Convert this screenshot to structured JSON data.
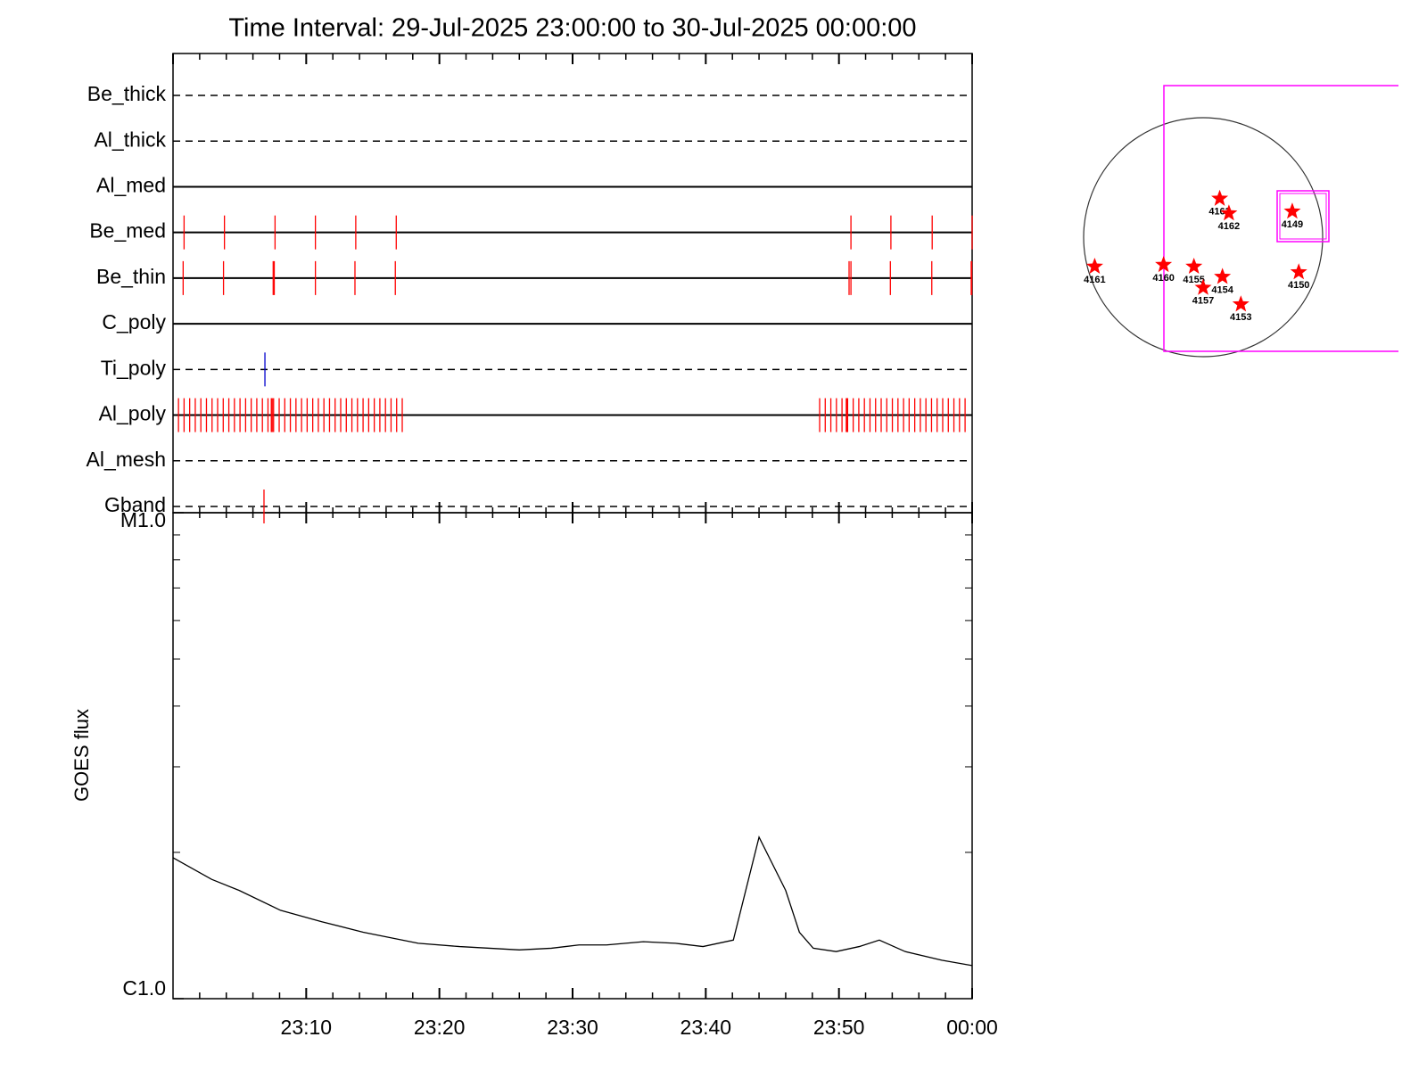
{
  "chart_data": [
    {
      "type": "events",
      "title": "Time Interval: 29-Jul-2025 23:00:00 to 30-Jul-2025 00:00:00",
      "xlim": [
        0,
        60
      ],
      "xticks": [
        0,
        10,
        20,
        30,
        40,
        50,
        60
      ],
      "xminorticks": [
        2,
        4,
        6,
        8,
        12,
        14,
        16,
        18,
        22,
        24,
        26,
        28,
        32,
        34,
        36,
        38,
        42,
        44,
        46,
        48,
        52,
        54,
        56,
        58
      ],
      "filters": [
        {
          "name": "Be_thick",
          "line_style": "dashed",
          "event_color": "#ff0000",
          "events": []
        },
        {
          "name": "Al_thick",
          "line_style": "dashed",
          "event_color": "#ff0000",
          "events": []
        },
        {
          "name": "Al_med",
          "line_style": "solid",
          "event_color": "#ff0000",
          "events": []
        },
        {
          "name": "Be_med",
          "line_style": "solid",
          "event_color": "#ff0000",
          "events": [
            0.83,
            3.86,
            7.66,
            10.69,
            13.72,
            16.76,
            50.9,
            53.9,
            57.0,
            60.0
          ]
        },
        {
          "name": "Be_thin",
          "line_style": "solid",
          "event_color": "#ff0000",
          "events": [
            0.76,
            3.79,
            7.52,
            7.6,
            10.69,
            13.66,
            16.69,
            50.76,
            50.9,
            53.86,
            56.97,
            59.93,
            59.97
          ]
        },
        {
          "name": "C_poly",
          "line_style": "solid",
          "event_color": "#ff0000",
          "events": []
        },
        {
          "name": "Ti_poly",
          "line_style": "dashed",
          "event_color": "#0000cc",
          "events": [
            6.9
          ]
        },
        {
          "name": "Al_poly",
          "line_style": "solid",
          "event_color": "#ff0000",
          "events": [
            0.41,
            0.83,
            1.25,
            1.67,
            2.09,
            2.51,
            2.93,
            3.35,
            3.77,
            4.19,
            4.61,
            5.03,
            5.45,
            5.87,
            6.29,
            6.71,
            7.13,
            7.38,
            7.45,
            7.55,
            7.97,
            8.39,
            8.81,
            9.23,
            9.65,
            10.07,
            10.49,
            10.91,
            11.33,
            11.75,
            12.17,
            12.59,
            13.01,
            13.43,
            13.85,
            14.27,
            14.69,
            15.11,
            15.53,
            15.95,
            16.37,
            16.79,
            17.21,
            48.55,
            48.97,
            49.39,
            49.81,
            50.23,
            50.55,
            50.6,
            50.65,
            51.07,
            51.49,
            51.91,
            52.33,
            52.75,
            53.17,
            53.59,
            54.01,
            54.43,
            54.85,
            55.27,
            55.69,
            56.11,
            56.53,
            56.95,
            57.37,
            57.79,
            58.21,
            58.63,
            59.05,
            59.47
          ]
        },
        {
          "name": "Al_mesh",
          "line_style": "dashed",
          "event_color": "#ff0000",
          "events": []
        },
        {
          "name": "Gband",
          "line_style": "dashed",
          "event_color": "#ff0000",
          "events": [
            6.83
          ]
        }
      ]
    },
    {
      "type": "line",
      "y_label": "GOES flux",
      "ylog": true,
      "color": "#000000",
      "xlim": [
        0,
        60
      ],
      "xticks": [
        {
          "value": 10,
          "label": "23:10"
        },
        {
          "value": 20,
          "label": "23:20"
        },
        {
          "value": 30,
          "label": "23:30"
        },
        {
          "value": 40,
          "label": "23:40"
        },
        {
          "value": 50,
          "label": "23:50"
        },
        {
          "value": 60,
          "label": "00:00"
        }
      ],
      "ylim": [
        1e-06,
        1e-05
      ],
      "yticks": [
        {
          "value": 1e-06,
          "label": "C1.0"
        },
        {
          "value": 1e-05,
          "label": "M1.0"
        }
      ],
      "yminorticks": [
        2e-06,
        3e-06,
        4e-06,
        5e-06,
        6e-06,
        7e-06,
        8e-06,
        9e-06
      ],
      "x": [
        0,
        2.9,
        4.97,
        8.07,
        11.17,
        14.28,
        18.41,
        21.52,
        26.0,
        28.41,
        30.48,
        32.55,
        35.31,
        37.72,
        39.79,
        42.07,
        44.0,
        46.0,
        47.03,
        48.07,
        49.79,
        51.52,
        53.03,
        54.97,
        57.72,
        60.0
      ],
      "values": [
        1.95e-06,
        1.76e-06,
        1.67e-06,
        1.52e-06,
        1.44e-06,
        1.37e-06,
        1.3e-06,
        1.28e-06,
        1.26e-06,
        1.27e-06,
        1.29e-06,
        1.29e-06,
        1.31e-06,
        1.3e-06,
        1.28e-06,
        1.32e-06,
        2.15e-06,
        1.67e-06,
        1.37e-06,
        1.27e-06,
        1.25e-06,
        1.28e-06,
        1.32e-06,
        1.25e-06,
        1.2e-06,
        1.17e-06
      ]
    },
    {
      "type": "map",
      "color": "#ff0000",
      "regions": [
        {
          "label": "4163",
          "x": 133,
          "y": 310
        },
        {
          "label": "4162",
          "x": 207,
          "y": 192
        },
        {
          "label": "4149",
          "x": 716,
          "y": 207
        },
        {
          "label": "4161",
          "x": -871,
          "y": -236
        },
        {
          "label": "4160",
          "x": -318,
          "y": -222
        },
        {
          "label": "4155",
          "x": -74,
          "y": -236
        },
        {
          "label": "4154",
          "x": 155,
          "y": -318
        },
        {
          "label": "4157",
          "x": 0,
          "y": -406
        },
        {
          "label": "4153",
          "x": 303,
          "y": -539
        },
        {
          "label": "4150",
          "x": 768,
          "y": -281
        }
      ]
    }
  ]
}
